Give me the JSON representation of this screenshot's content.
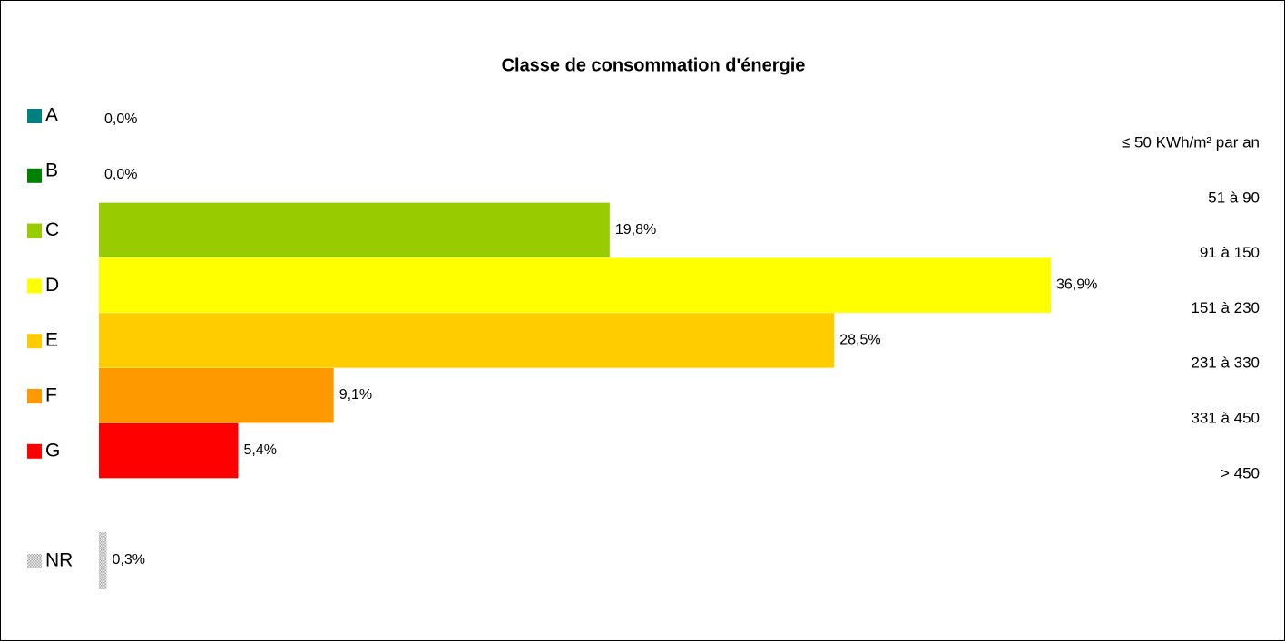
{
  "chart_data": {
    "type": "bar",
    "orientation": "horizontal",
    "title": "Classe de consommation d'énergie",
    "categories": [
      "A",
      "B",
      "C",
      "D",
      "E",
      "F",
      "G",
      "NR"
    ],
    "values": [
      0,
      0,
      19.8,
      36.9,
      28.5,
      9.1,
      5.4,
      0.3
    ],
    "value_labels": [
      "0,0%",
      "0,0%",
      "19,8%",
      "36,9%",
      "28,5%",
      "9,1%",
      "5,4%",
      "0,3%"
    ],
    "colors": [
      "#008080",
      "#008000",
      "#99cc00",
      "#ffff00",
      "#ffcc00",
      "#ff9900",
      "#ff0000",
      "#c8c8c8"
    ],
    "annotations": [
      "≤ 50 KWh/m² par an",
      "51 à 90",
      "91 à 150",
      "151 à 230",
      "231 à 330",
      "331 à 450",
      "> 450",
      null
    ]
  }
}
